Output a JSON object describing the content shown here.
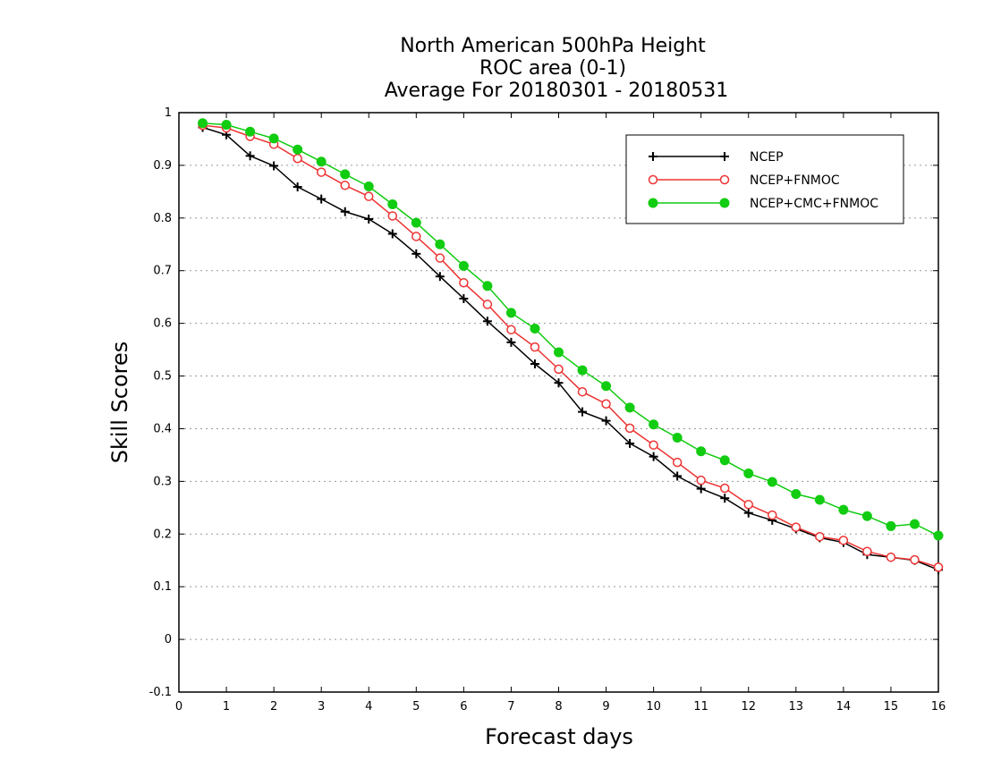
{
  "chart_data": {
    "type": "line",
    "title": [
      "North American 500hPa Height",
      "ROC area (0-1)",
      "Average For 20180301 - 20180531"
    ],
    "xlabel": "Forecast days",
    "ylabel": "Skill Scores",
    "xlim": [
      0,
      16
    ],
    "ylim": [
      -0.1,
      1
    ],
    "xticks": [
      0,
      1,
      2,
      3,
      4,
      5,
      6,
      7,
      8,
      9,
      10,
      11,
      12,
      13,
      14,
      15,
      16
    ],
    "yticks": [
      -0.1,
      0,
      0.1,
      0.2,
      0.3,
      0.4,
      0.5,
      0.6,
      0.7,
      0.8,
      0.9,
      1
    ],
    "ytick_labels": [
      "-0.1",
      "0",
      "0.1",
      "0.2",
      "0.3",
      "0.4",
      "0.5",
      "0.6",
      "0.7",
      "0.8",
      "0.9",
      "1"
    ],
    "grid": "horizontal dotted",
    "legend_position": "top-right",
    "x": [
      0.5,
      1,
      1.5,
      2,
      2.5,
      3,
      3.5,
      4,
      4.5,
      5,
      5.5,
      6,
      6.5,
      7,
      7.5,
      8,
      8.5,
      9,
      9.5,
      10,
      10.5,
      11,
      11.5,
      12,
      12.5,
      13,
      13.5,
      14,
      14.5,
      15,
      15.5,
      16
    ],
    "series": [
      {
        "name": "NCEP",
        "color": "#000000",
        "marker": "plus",
        "values": [
          0.972,
          0.958,
          0.918,
          0.899,
          0.859,
          0.836,
          0.812,
          0.798,
          0.77,
          0.732,
          0.689,
          0.647,
          0.604,
          0.564,
          0.523,
          0.487,
          0.432,
          0.415,
          0.372,
          0.347,
          0.31,
          0.286,
          0.268,
          0.24,
          0.226,
          0.21,
          0.193,
          0.184,
          0.161,
          0.156,
          0.15,
          0.132
        ]
      },
      {
        "name": "NCEP+FNMOC",
        "color": "#ee3333",
        "marker": "open-circle",
        "values": [
          0.976,
          0.971,
          0.955,
          0.94,
          0.913,
          0.887,
          0.862,
          0.841,
          0.804,
          0.765,
          0.724,
          0.677,
          0.636,
          0.588,
          0.555,
          0.513,
          0.47,
          0.447,
          0.401,
          0.369,
          0.336,
          0.302,
          0.287,
          0.256,
          0.236,
          0.213,
          0.195,
          0.188,
          0.167,
          0.156,
          0.151,
          0.137
        ]
      },
      {
        "name": "NCEP+CMC+FNMOC",
        "color": "#11cc11",
        "marker": "filled-circle",
        "values": [
          0.98,
          0.977,
          0.964,
          0.951,
          0.93,
          0.907,
          0.883,
          0.86,
          0.826,
          0.791,
          0.75,
          0.709,
          0.671,
          0.62,
          0.59,
          0.545,
          0.511,
          0.481,
          0.44,
          0.408,
          0.383,
          0.357,
          0.34,
          0.315,
          0.299,
          0.276,
          0.265,
          0.246,
          0.234,
          0.215,
          0.219,
          0.197
        ]
      }
    ]
  }
}
